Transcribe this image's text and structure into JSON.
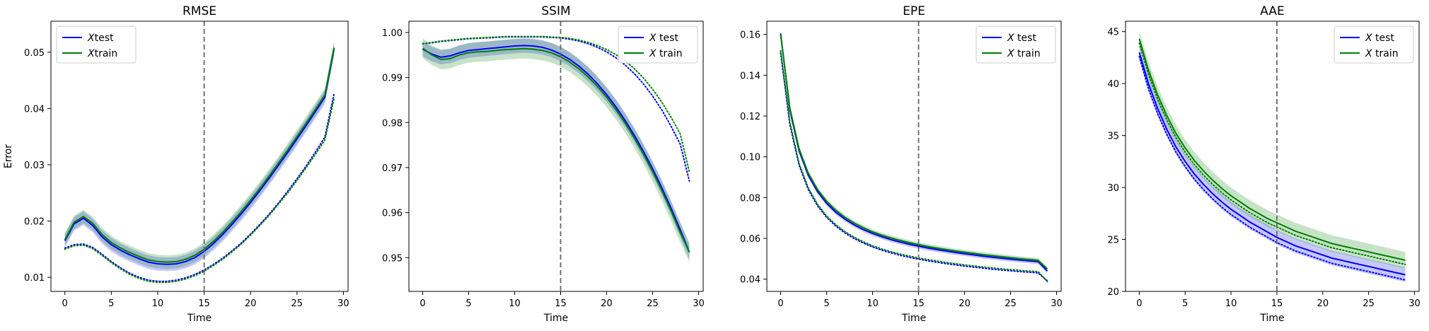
{
  "figure": {
    "colors": {
      "test": "#0000ff",
      "train": "#008000",
      "marker_line": "#666666"
    },
    "vline_x": 15
  },
  "chart_data": [
    {
      "type": "line",
      "title": "RMSE",
      "xlabel": "Time",
      "ylabel": "Error",
      "xlim": [
        -1.5,
        30.5
      ],
      "ylim": [
        0.0075,
        0.0555
      ],
      "xticks": [
        0,
        5,
        10,
        15,
        20,
        25,
        30
      ],
      "yticks": [
        0.01,
        0.02,
        0.03,
        0.04,
        0.05
      ],
      "ytick_labels": [
        "0.01",
        "0.02",
        "0.03",
        "0.04",
        "0.05"
      ],
      "legend": {
        "position": "upper-left",
        "entries": [
          "Xtest",
          "Xtrain"
        ]
      },
      "x": [
        0,
        1,
        2,
        3,
        4,
        5,
        6,
        7,
        8,
        9,
        10,
        11,
        12,
        13,
        14,
        15,
        16,
        17,
        18,
        19,
        20,
        21,
        22,
        23,
        24,
        25,
        26,
        27,
        28,
        29
      ],
      "series": [
        {
          "name": "Xtest",
          "style": "solid",
          "band": 0.0012,
          "values": [
            0.0165,
            0.0195,
            0.0205,
            0.0192,
            0.0172,
            0.0158,
            0.0148,
            0.014,
            0.0133,
            0.0127,
            0.0124,
            0.0123,
            0.0124,
            0.0128,
            0.0135,
            0.0146,
            0.016,
            0.0176,
            0.0194,
            0.0213,
            0.0233,
            0.0254,
            0.0276,
            0.0299,
            0.0322,
            0.0346,
            0.037,
            0.0395,
            0.042,
            0.0506
          ]
        },
        {
          "name": "Xtrain",
          "style": "solid",
          "band": 0.0012,
          "values": [
            0.0167,
            0.0198,
            0.0208,
            0.0196,
            0.0176,
            0.0162,
            0.0152,
            0.0144,
            0.0137,
            0.0131,
            0.0128,
            0.0127,
            0.0128,
            0.0132,
            0.0139,
            0.015,
            0.0164,
            0.018,
            0.0198,
            0.0217,
            0.0237,
            0.0258,
            0.028,
            0.0303,
            0.0326,
            0.035,
            0.0374,
            0.0399,
            0.0424,
            0.0508
          ]
        },
        {
          "name": "",
          "style": "dotted",
          "color_key": "test",
          "values": [
            0.0152,
            0.0158,
            0.0159,
            0.0153,
            0.0141,
            0.0128,
            0.0117,
            0.0107,
            0.01,
            0.0095,
            0.0093,
            0.0093,
            0.0095,
            0.0099,
            0.0105,
            0.0113,
            0.0123,
            0.0134,
            0.0147,
            0.0161,
            0.0177,
            0.0194,
            0.0212,
            0.0232,
            0.0253,
            0.0275,
            0.0298,
            0.0323,
            0.0349,
            0.0427
          ]
        },
        {
          "name": "",
          "style": "dotted",
          "color_key": "train",
          "values": [
            0.015,
            0.0156,
            0.0157,
            0.0151,
            0.0139,
            0.0126,
            0.0115,
            0.0105,
            0.0098,
            0.0093,
            0.0091,
            0.0091,
            0.0093,
            0.0097,
            0.0103,
            0.0111,
            0.0121,
            0.0132,
            0.0145,
            0.0159,
            0.0175,
            0.0192,
            0.021,
            0.023,
            0.025,
            0.0272,
            0.0295,
            0.0319,
            0.0344,
            0.0418
          ]
        }
      ]
    },
    {
      "type": "line",
      "title": "SSIM",
      "xlabel": "Time",
      "ylabel": "",
      "xlim": [
        -1.5,
        30.5
      ],
      "ylim": [
        0.9425,
        1.0025
      ],
      "xticks": [
        0,
        5,
        10,
        15,
        20,
        25,
        30
      ],
      "yticks": [
        0.95,
        0.96,
        0.97,
        0.98,
        0.99,
        1.0
      ],
      "ytick_labels": [
        "0.95",
        "0.96",
        "0.97",
        "0.98",
        "0.99",
        "1.00"
      ],
      "legend": {
        "position": "upper-right",
        "entries": [
          "X test",
          "X train"
        ]
      },
      "x": [
        0,
        1,
        2,
        3,
        4,
        5,
        6,
        7,
        8,
        9,
        10,
        11,
        12,
        13,
        14,
        15,
        16,
        17,
        18,
        19,
        20,
        21,
        22,
        23,
        24,
        25,
        26,
        27,
        28,
        29
      ],
      "series": [
        {
          "name": "X test",
          "style": "solid",
          "band": 0.0016,
          "values": [
            0.9963,
            0.9952,
            0.9945,
            0.9948,
            0.9955,
            0.996,
            0.9962,
            0.9964,
            0.9966,
            0.9968,
            0.997,
            0.9971,
            0.997,
            0.9967,
            0.9961,
            0.9952,
            0.994,
            0.9925,
            0.9907,
            0.9886,
            0.9862,
            0.9835,
            0.9805,
            0.9772,
            0.9736,
            0.9697,
            0.9655,
            0.961,
            0.9562,
            0.9512
          ]
        },
        {
          "name": "X train",
          "style": "solid",
          "band": 0.0022,
          "values": [
            0.9965,
            0.995,
            0.994,
            0.9942,
            0.995,
            0.9955,
            0.9957,
            0.9958,
            0.996,
            0.9962,
            0.9963,
            0.9964,
            0.9963,
            0.996,
            0.9955,
            0.9946,
            0.9934,
            0.9919,
            0.9901,
            0.988,
            0.9856,
            0.9829,
            0.9799,
            0.9766,
            0.973,
            0.9691,
            0.9649,
            0.9604,
            0.9556,
            0.9512
          ]
        },
        {
          "name": "",
          "style": "dotted",
          "color_key": "test",
          "values": [
            0.9975,
            0.9977,
            0.998,
            0.9982,
            0.9984,
            0.9986,
            0.9987,
            0.9988,
            0.9989,
            0.999,
            0.999,
            0.999,
            0.999,
            0.999,
            0.9989,
            0.9988,
            0.9985,
            0.9981,
            0.9975,
            0.9967,
            0.9957,
            0.9944,
            0.9928,
            0.9909,
            0.9886,
            0.9859,
            0.9828,
            0.9792,
            0.9752,
            0.967
          ]
        },
        {
          "name": "",
          "style": "dotted",
          "color_key": "train",
          "values": [
            0.9975,
            0.9978,
            0.9981,
            0.9983,
            0.9985,
            0.9987,
            0.9988,
            0.9989,
            0.999,
            0.9991,
            0.9991,
            0.9991,
            0.9991,
            0.9991,
            0.999,
            0.9989,
            0.9987,
            0.9983,
            0.9978,
            0.9971,
            0.9962,
            0.9951,
            0.9937,
            0.992,
            0.9899,
            0.9874,
            0.9845,
            0.9812,
            0.9775,
            0.969
          ]
        }
      ]
    },
    {
      "type": "line",
      "title": "EPE",
      "xlabel": "Time",
      "ylabel": "",
      "xlim": [
        -1.5,
        30.5
      ],
      "ylim": [
        0.034,
        0.1665
      ],
      "xticks": [
        0,
        5,
        10,
        15,
        20,
        25,
        30
      ],
      "yticks": [
        0.04,
        0.06,
        0.08,
        0.1,
        0.12,
        0.14,
        0.16
      ],
      "ytick_labels": [
        "0.04",
        "0.06",
        "0.08",
        "0.10",
        "0.12",
        "0.14",
        "0.16"
      ],
      "legend": {
        "position": "upper-right",
        "entries": [
          "X test",
          "X train"
        ]
      },
      "x": [
        0,
        1,
        2,
        3,
        4,
        5,
        6,
        7,
        8,
        9,
        10,
        11,
        12,
        13,
        14,
        15,
        16,
        17,
        18,
        19,
        20,
        21,
        22,
        23,
        24,
        25,
        26,
        27,
        28,
        29
      ],
      "series": [
        {
          "name": "X test",
          "style": "solid",
          "band": 0.0012,
          "values": [
            0.1605,
            0.123,
            0.103,
            0.091,
            0.083,
            0.0772,
            0.0728,
            0.0694,
            0.0666,
            0.0643,
            0.0624,
            0.0608,
            0.0594,
            0.0582,
            0.0571,
            0.0562,
            0.0553,
            0.0545,
            0.0538,
            0.0531,
            0.0525,
            0.0519,
            0.0513,
            0.0508,
            0.0503,
            0.0498,
            0.0494,
            0.049,
            0.0486,
            0.044
          ]
        },
        {
          "name": "X train",
          "style": "solid",
          "band": 0.0012,
          "values": [
            0.16,
            0.124,
            0.104,
            0.092,
            0.084,
            0.0782,
            0.0738,
            0.0703,
            0.0675,
            0.0652,
            0.0632,
            0.0616,
            0.0602,
            0.059,
            0.0579,
            0.0569,
            0.056,
            0.0552,
            0.0545,
            0.0538,
            0.0532,
            0.0526,
            0.052,
            0.0515,
            0.051,
            0.0505,
            0.05,
            0.0496,
            0.0492,
            0.045
          ]
        },
        {
          "name": "",
          "style": "dotted",
          "color_key": "test",
          "values": [
            0.151,
            0.116,
            0.096,
            0.084,
            0.076,
            0.0703,
            0.066,
            0.0626,
            0.0599,
            0.0577,
            0.0558,
            0.0542,
            0.0529,
            0.0517,
            0.0507,
            0.0498,
            0.049,
            0.0483,
            0.0476,
            0.047,
            0.0464,
            0.0459,
            0.0454,
            0.0449,
            0.0445,
            0.0441,
            0.0437,
            0.0434,
            0.0431,
            0.0392
          ]
        },
        {
          "name": "",
          "style": "dotted",
          "color_key": "train",
          "values": [
            0.152,
            0.117,
            0.0968,
            0.0848,
            0.0768,
            0.071,
            0.0667,
            0.0633,
            0.0606,
            0.0583,
            0.0564,
            0.0548,
            0.0535,
            0.0523,
            0.0513,
            0.0504,
            0.0496,
            0.0489,
            0.0482,
            0.0476,
            0.047,
            0.0465,
            0.046,
            0.0455,
            0.0451,
            0.0447,
            0.0443,
            0.044,
            0.0437,
            0.0388
          ]
        }
      ]
    },
    {
      "type": "line",
      "title": "AAE",
      "xlabel": "Time",
      "ylabel": "",
      "xlim": [
        -1.5,
        30.5
      ],
      "ylim": [
        20.0,
        46.0
      ],
      "xticks": [
        0,
        5,
        10,
        15,
        20,
        25,
        30
      ],
      "yticks": [
        20,
        25,
        30,
        35,
        40,
        45
      ],
      "ytick_labels": [
        "20",
        "25",
        "30",
        "35",
        "40",
        "45"
      ],
      "legend": {
        "position": "upper-right",
        "entries": [
          "X test",
          "X train"
        ]
      },
      "x": [
        0,
        1,
        2,
        3,
        4,
        5,
        6,
        7,
        8,
        9,
        10,
        11,
        12,
        13,
        14,
        15,
        16,
        17,
        18,
        19,
        20,
        21,
        22,
        23,
        24,
        25,
        26,
        27,
        28,
        29
      ],
      "series": [
        {
          "name": "X test",
          "style": "solid",
          "band": 0.7,
          "values": [
            43.0,
            40.0,
            37.6,
            35.6,
            33.9,
            32.5,
            31.3,
            30.3,
            29.4,
            28.6,
            27.9,
            27.3,
            26.7,
            26.2,
            25.7,
            25.2,
            24.8,
            24.4,
            24.1,
            23.8,
            23.5,
            23.2,
            23.0,
            22.8,
            22.6,
            22.4,
            22.2,
            22.0,
            21.8,
            21.6
          ]
        },
        {
          "name": "X train",
          "style": "solid",
          "band": 0.8,
          "values": [
            44.3,
            41.3,
            38.9,
            36.9,
            35.2,
            33.8,
            32.6,
            31.6,
            30.7,
            29.9,
            29.2,
            28.6,
            28.0,
            27.5,
            27.0,
            26.6,
            26.2,
            25.8,
            25.5,
            25.2,
            24.9,
            24.6,
            24.4,
            24.2,
            24.0,
            23.8,
            23.6,
            23.4,
            23.2,
            23.0
          ]
        },
        {
          "name": "",
          "style": "dotted",
          "color_key": "test",
          "values": [
            42.6,
            39.5,
            37.1,
            35.1,
            33.4,
            32.0,
            30.8,
            29.8,
            28.9,
            28.1,
            27.4,
            26.8,
            26.2,
            25.7,
            25.2,
            24.7,
            24.3,
            23.9,
            23.6,
            23.3,
            23.0,
            22.7,
            22.5,
            22.3,
            22.1,
            21.9,
            21.7,
            21.5,
            21.3,
            21.1
          ]
        },
        {
          "name": "",
          "style": "dotted",
          "color_key": "train",
          "values": [
            43.9,
            40.9,
            38.5,
            36.5,
            34.8,
            33.4,
            32.2,
            31.2,
            30.3,
            29.5,
            28.8,
            28.2,
            27.6,
            27.1,
            26.6,
            26.2,
            25.8,
            25.4,
            25.1,
            24.8,
            24.5,
            24.2,
            24.0,
            23.8,
            23.6,
            23.4,
            23.2,
            23.0,
            22.8,
            22.6
          ]
        }
      ]
    }
  ]
}
